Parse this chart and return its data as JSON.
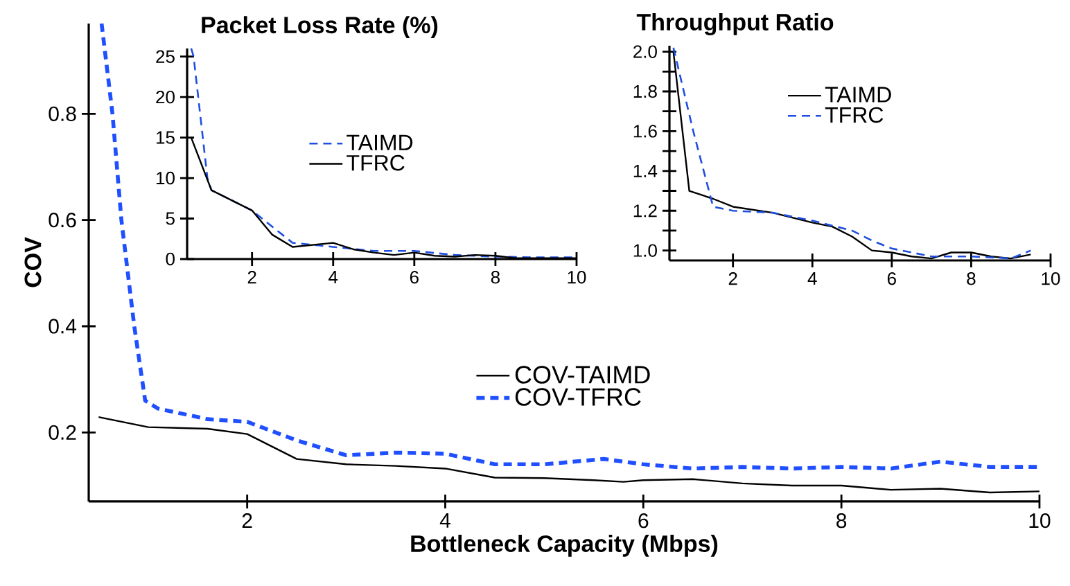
{
  "chart_data": [
    {
      "type": "line",
      "xlabel": "Bottleneck Capacity (Mbps)",
      "ylabel": "COV",
      "xlim": [
        0.4,
        10
      ],
      "ylim": [
        0.07,
        0.97
      ],
      "xticks": [
        2,
        4,
        6,
        8,
        10
      ],
      "yticks": [
        0.2,
        0.4,
        0.6,
        0.8
      ],
      "legend": "bottom",
      "series": [
        {
          "name": "COV-TAIMD",
          "color": "#000000",
          "line_style": "solid",
          "x": [
            0.5,
            1,
            1.6,
            2,
            2.5,
            3,
            3.5,
            4,
            4.5,
            5,
            5.5,
            5.8,
            6,
            6.5,
            7,
            7.5,
            8,
            8.5,
            9,
            9.5,
            10
          ],
          "values": [
            0.229,
            0.21,
            0.207,
            0.197,
            0.15,
            0.14,
            0.137,
            0.132,
            0.115,
            0.114,
            0.11,
            0.107,
            0.11,
            0.112,
            0.104,
            0.1,
            0.1,
            0.092,
            0.094,
            0.087,
            0.089
          ]
        },
        {
          "name": "COV-TFRC",
          "color": "#1f4fff",
          "line_style": "dashed",
          "x": [
            0.53,
            0.64,
            0.73,
            0.86,
            0.97,
            1.1,
            1.6,
            2,
            2.5,
            3,
            3.5,
            4,
            4.5,
            5,
            5.6,
            6,
            6.5,
            7,
            7.5,
            8,
            8.5,
            9,
            9.5,
            10
          ],
          "values": [
            0.97,
            0.8,
            0.6,
            0.4,
            0.26,
            0.245,
            0.225,
            0.22,
            0.185,
            0.157,
            0.162,
            0.16,
            0.14,
            0.14,
            0.15,
            0.14,
            0.132,
            0.135,
            0.132,
            0.135,
            0.132,
            0.145,
            0.135,
            0.135
          ]
        }
      ]
    },
    {
      "type": "line",
      "title": "Packet Loss Rate (%)",
      "xlim": [
        0.4,
        10
      ],
      "ylim": [
        0,
        26
      ],
      "xticks": [
        2,
        4,
        6,
        8,
        10
      ],
      "yticks": [
        0,
        5,
        10,
        15,
        20,
        25
      ],
      "legend": "center",
      "series": [
        {
          "name": "TAIMD",
          "color": "#1f4fe0",
          "line_style": "dashed",
          "x": [
            0.5,
            0.56,
            0.9,
            1,
            2,
            3,
            4,
            5,
            6,
            7,
            8,
            9,
            10
          ],
          "values": [
            26,
            25,
            10,
            8.5,
            6,
            2,
            1.5,
            1,
            1,
            0.5,
            0.3,
            0.2,
            0.2
          ]
        },
        {
          "name": "TFRC",
          "color": "#000000",
          "line_style": "solid",
          "x": [
            0.5,
            1,
            2,
            2.5,
            3,
            4,
            4.5,
            5,
            5.5,
            6,
            6.5,
            7,
            7.5,
            8,
            8.5,
            9,
            10
          ],
          "values": [
            15,
            8.5,
            6,
            3,
            1.5,
            2,
            1.2,
            0.8,
            0.5,
            0.8,
            0.4,
            0.3,
            0.5,
            0.4,
            0.1,
            0.1,
            0.1
          ]
        }
      ]
    },
    {
      "type": "line",
      "title": "Throughput Ratio",
      "xlim": [
        0.4,
        10
      ],
      "ylim": [
        0.95,
        2.03
      ],
      "xticks": [
        2,
        4,
        6,
        8,
        10
      ],
      "yticks": [
        {
          "value": 1.0,
          "label": "1.0"
        },
        {
          "value": 1.1,
          "label": null
        },
        {
          "value": 1.2,
          "label": "1.2"
        },
        {
          "value": 1.3,
          "label": null
        },
        {
          "value": 1.4,
          "label": "1.4"
        },
        {
          "value": 1.5,
          "label": null
        },
        {
          "value": 1.6,
          "label": "1.6"
        },
        {
          "value": 1.7,
          "label": null
        },
        {
          "value": 1.8,
          "label": "1.8"
        },
        {
          "value": 1.9,
          "label": null
        },
        {
          "value": 2.0,
          "label": "2.0"
        }
      ],
      "legend": "top",
      "series": [
        {
          "name": "TAIMD",
          "color": "#000000",
          "line_style": "solid",
          "x": [
            0.5,
            0.9,
            1.5,
            2,
            3,
            4,
            4.5,
            5,
            5.5,
            6,
            6.5,
            7,
            7.5,
            8,
            8.5,
            9,
            9.5
          ],
          "values": [
            2.0,
            1.3,
            1.26,
            1.22,
            1.19,
            1.14,
            1.12,
            1.07,
            1.0,
            0.99,
            0.97,
            0.96,
            0.99,
            0.99,
            0.97,
            0.96,
            0.98
          ]
        },
        {
          "name": "TFRC",
          "color": "#1f4fe0",
          "line_style": "dashed",
          "x": [
            0.5,
            1,
            1.5,
            2,
            3,
            4,
            5,
            5.5,
            6,
            7,
            8,
            9,
            9.5
          ],
          "values": [
            2.02,
            1.6,
            1.22,
            1.2,
            1.19,
            1.15,
            1.1,
            1.05,
            1.01,
            0.97,
            0.97,
            0.96,
            1.0
          ]
        }
      ]
    }
  ]
}
